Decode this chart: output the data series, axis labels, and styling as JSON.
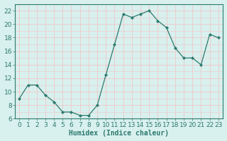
{
  "x": [
    0,
    1,
    2,
    3,
    4,
    5,
    6,
    7,
    8,
    9,
    10,
    11,
    12,
    13,
    14,
    15,
    16,
    17,
    18,
    19,
    20,
    21,
    22,
    23
  ],
  "y": [
    9,
    11,
    11,
    9.5,
    8.5,
    7,
    7,
    6.5,
    6.5,
    8,
    12.5,
    17,
    21.5,
    21,
    21.5,
    22,
    20.5,
    19.5,
    16.5,
    15,
    15,
    14,
    18.5,
    18
  ],
  "line_color": "#2d7a6e",
  "marker": "D",
  "marker_size": 2.0,
  "bg_color": "#d8f0ee",
  "grid_color": "#f0c8c8",
  "xlabel": "Humidex (Indice chaleur)",
  "ylim": [
    6,
    23
  ],
  "xlim": [
    -0.5,
    23.5
  ],
  "yticks": [
    6,
    8,
    10,
    12,
    14,
    16,
    18,
    20,
    22
  ],
  "xticks": [
    0,
    1,
    2,
    3,
    4,
    5,
    6,
    7,
    8,
    9,
    10,
    11,
    12,
    13,
    14,
    15,
    16,
    17,
    18,
    19,
    20,
    21,
    22,
    23
  ],
  "xlabel_fontsize": 7,
  "tick_fontsize": 6.5,
  "spine_color": "#2d7a6e"
}
